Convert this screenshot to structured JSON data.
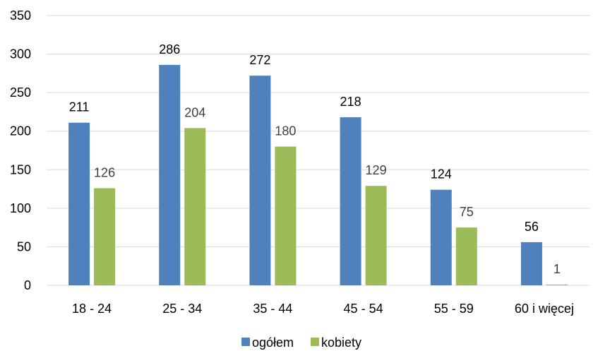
{
  "chart_data": {
    "type": "bar",
    "categories": [
      "18 - 24",
      "25 - 34",
      "35 - 44",
      "45 - 54",
      "55 - 59",
      "60 i więcej"
    ],
    "series": [
      {
        "name": "ogółem",
        "values": [
          211,
          286,
          272,
          218,
          124,
          56
        ],
        "color": "#4f81bd",
        "label_color": "#000000"
      },
      {
        "name": "kobiety",
        "values": [
          126,
          204,
          180,
          129,
          75,
          1
        ],
        "color": "#9bbb59",
        "label_color": "#404040"
      }
    ],
    "title": "",
    "xlabel": "",
    "ylabel": "",
    "ylim": [
      0,
      350
    ],
    "yticks": [
      0,
      50,
      100,
      150,
      200,
      250,
      300,
      350
    ],
    "grid": "horizontal",
    "gridline_color": "#d9d9d9",
    "legend": "bottom-center",
    "data_labels": true
  }
}
